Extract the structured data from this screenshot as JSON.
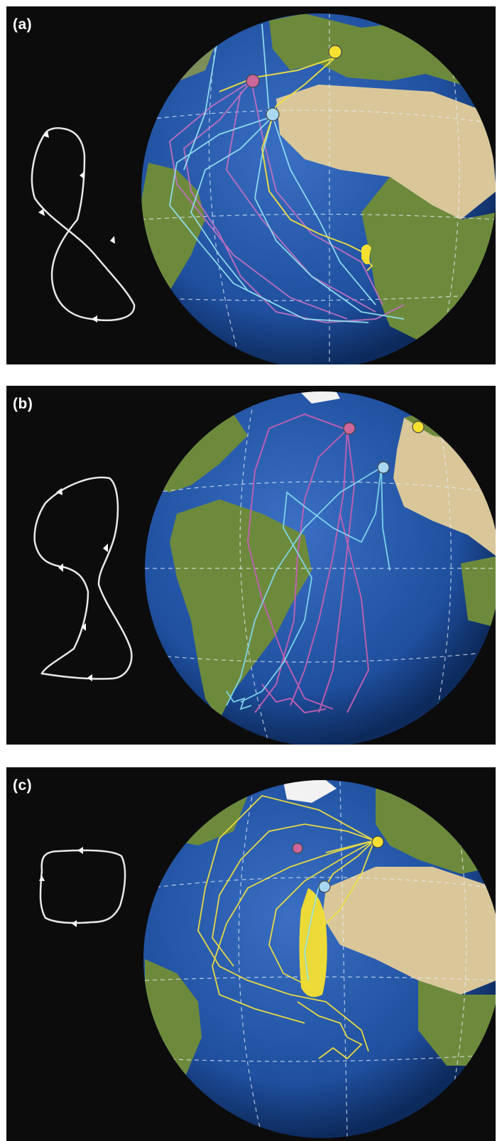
{
  "panels": [
    {
      "id": "a",
      "label": "(a)",
      "loop_shape": "figure-eight",
      "track_colors": [
        "#c070c0",
        "#90e0f0",
        "#f0e040"
      ]
    },
    {
      "id": "b",
      "label": "(b)",
      "loop_shape": "figure-eight",
      "track_colors": [
        "#c060b0",
        "#80d8ec"
      ]
    },
    {
      "id": "c",
      "label": "(c)",
      "loop_shape": "simple-loop",
      "track_colors": [
        "#f0e040",
        "#90e0f0"
      ]
    }
  ],
  "colony_marker_colors": {
    "pink": "#cc6699",
    "blue": "#a8d8f0",
    "yellow": "#f5e030"
  },
  "ocean_color": "#1f4f9e",
  "land_color": "#6d8a3c",
  "desert_color": "#d9c79a"
}
